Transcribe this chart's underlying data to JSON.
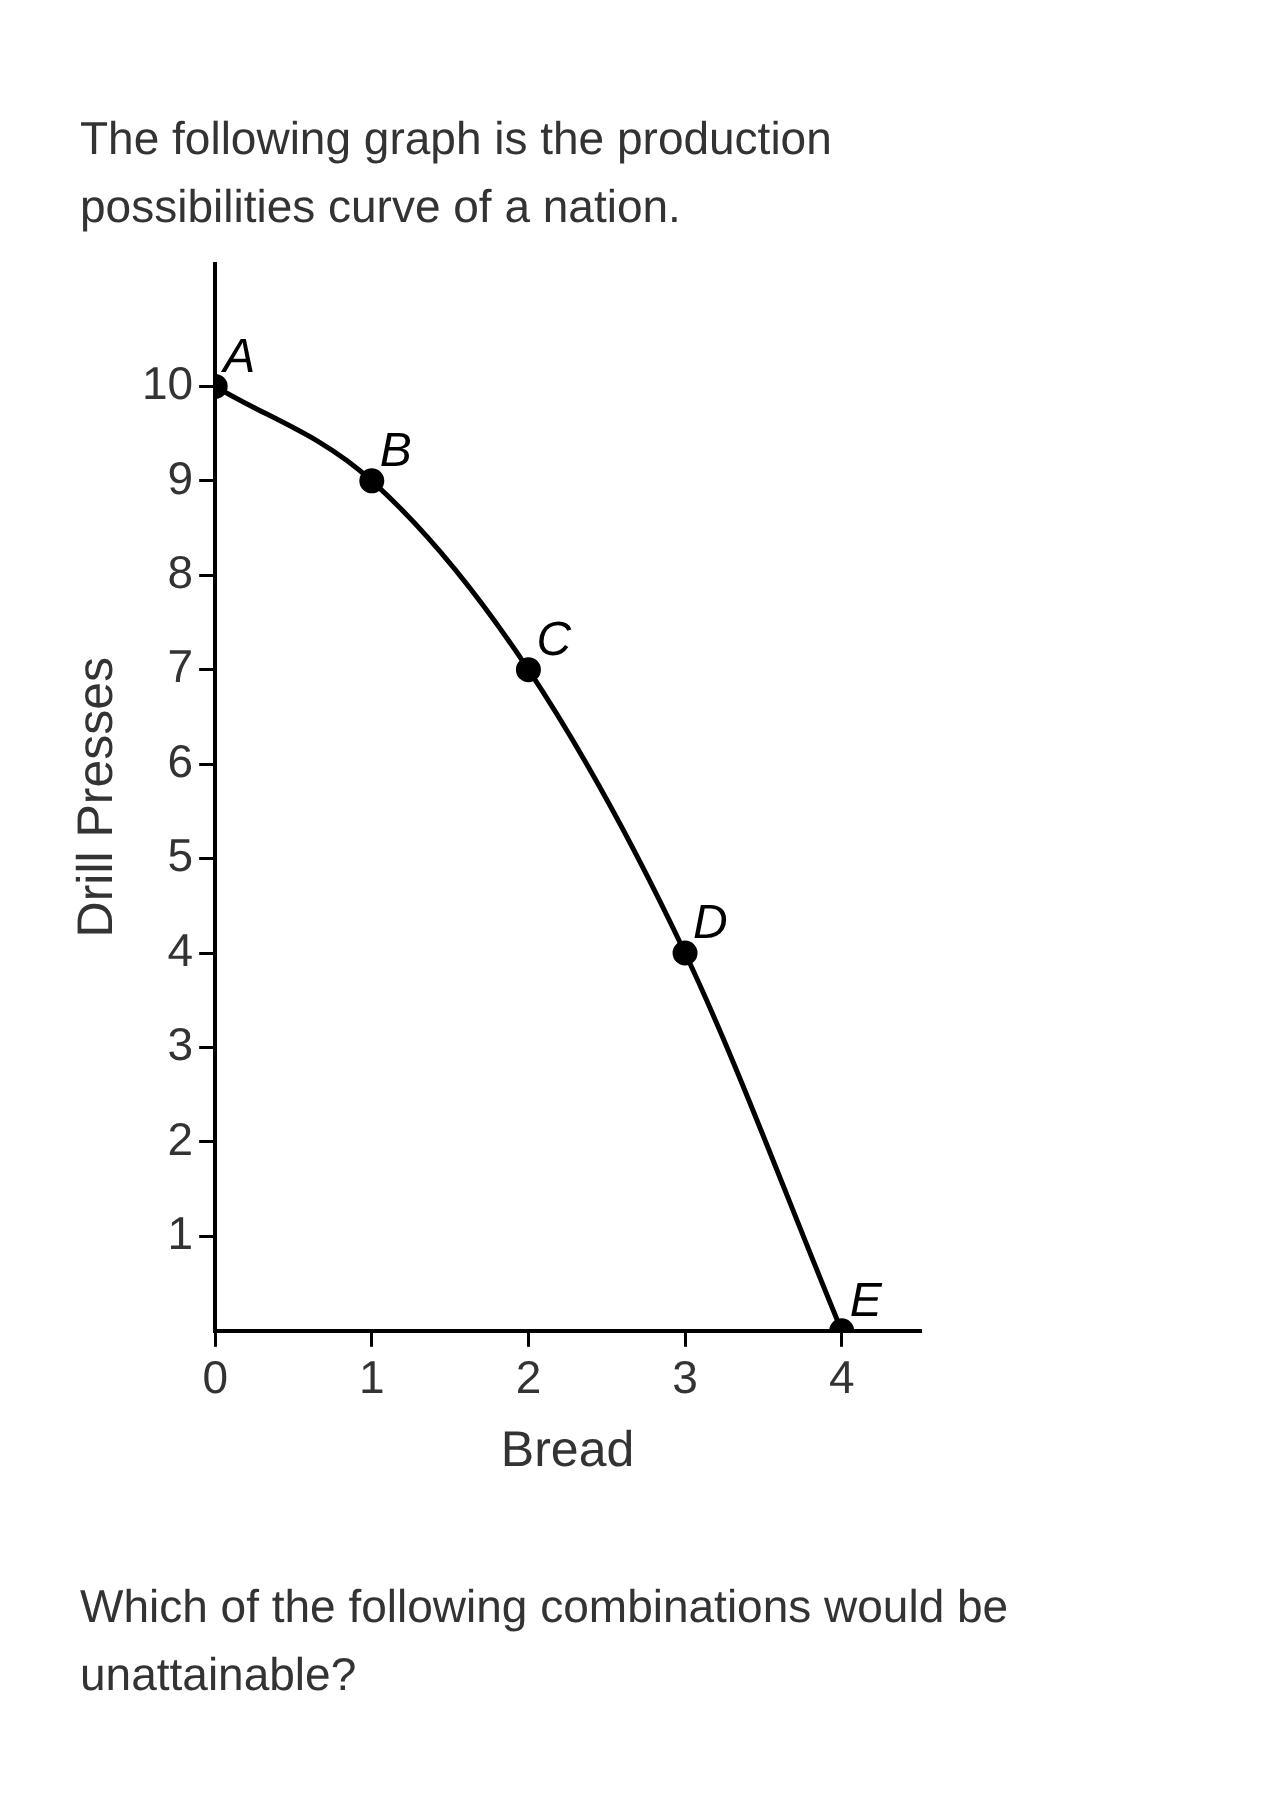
{
  "chart_data": {
    "type": "line",
    "title": "The following graph is the production possibilities curve of a nation.",
    "xlabel": "Bread",
    "ylabel": "Drill Presses",
    "x": [
      0,
      1,
      2,
      3,
      4
    ],
    "series": [
      {
        "color": "#000000",
        "values": [
          10,
          9,
          7,
          4,
          0
        ]
      }
    ],
    "xlim": [
      0,
      4.5
    ],
    "xticks": [
      0,
      1,
      2,
      3,
      4
    ],
    "ylim": [
      0,
      11.3
    ],
    "yticks": [
      1,
      2,
      3,
      4,
      5,
      6,
      7,
      8,
      9,
      10
    ],
    "grid": false,
    "legend": false,
    "marker": "circle",
    "line_style": "solid",
    "annotations": [
      {
        "text": "A",
        "x": 0,
        "y": 10
      },
      {
        "text": "B",
        "x": 1,
        "y": 9
      },
      {
        "text": "C",
        "x": 2,
        "y": 7
      },
      {
        "text": "D",
        "x": 3,
        "y": 4
      },
      {
        "text": "E",
        "x": 4,
        "y": 0
      },
      "Which of the following combinations would be unattainable?"
    ]
  }
}
